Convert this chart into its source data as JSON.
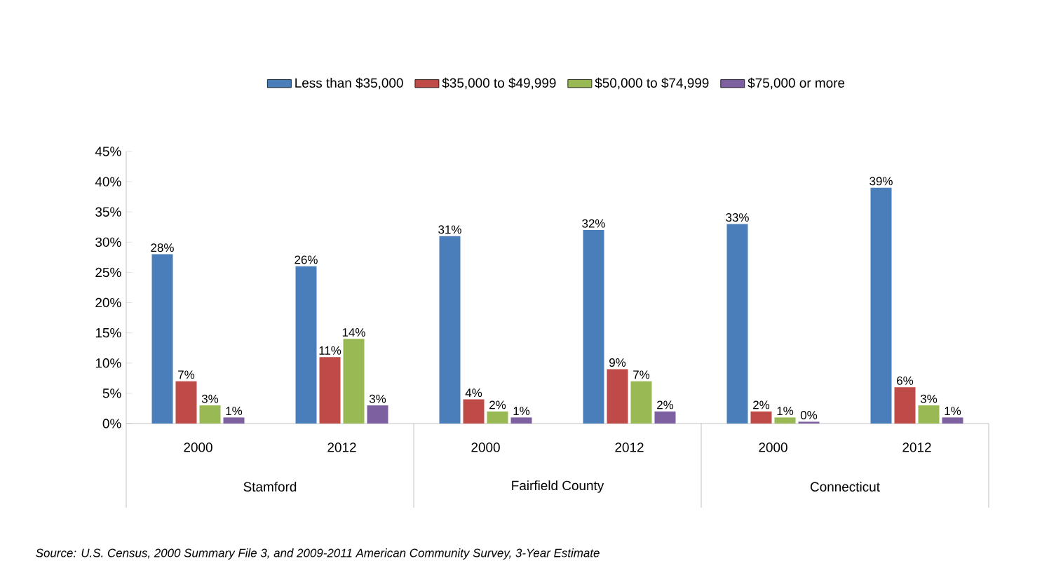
{
  "chart_data": {
    "type": "bar",
    "categories": [
      "2000",
      "2012",
      "2000",
      "2012",
      "2000",
      "2012"
    ],
    "series": [
      {
        "name": "Less than $35,000",
        "color": "#4a7ebb",
        "values": [
          28,
          26,
          31,
          32,
          33,
          39
        ],
        "value_labels": [
          "28%",
          "26%",
          "31%",
          "32%",
          "33%",
          "39%"
        ]
      },
      {
        "name": "$35,000 to $49,999",
        "color": "#be4b48",
        "values": [
          7,
          11,
          4,
          9,
          2,
          6
        ],
        "value_labels": [
          "7%",
          "11%",
          "4%",
          "9%",
          "2%",
          "6%"
        ]
      },
      {
        "name": "$50,000 to $74,999",
        "color": "#98b954",
        "values": [
          3,
          14,
          2,
          7,
          1,
          3
        ],
        "value_labels": [
          "3%",
          "14%",
          "2%",
          "7%",
          "1%",
          "3%"
        ]
      },
      {
        "name": "$75,000 or more",
        "color": "#7d60a0",
        "values": [
          1,
          3,
          1,
          2,
          0.3,
          1
        ],
        "value_labels": [
          "1%",
          "3%",
          "1%",
          "2%",
          "0%",
          "1%"
        ]
      }
    ],
    "ylim": [
      0,
      45
    ],
    "yticks": [
      {
        "value": 0,
        "label": "0%"
      },
      {
        "value": 5,
        "label": "5%"
      },
      {
        "value": 10,
        "label": "10%"
      },
      {
        "value": 15,
        "label": "15%"
      },
      {
        "value": 20,
        "label": "20%"
      },
      {
        "value": 25,
        "label": "25%"
      },
      {
        "value": 30,
        "label": "30%"
      },
      {
        "value": 35,
        "label": "35%"
      },
      {
        "value": 40,
        "label": "40%"
      },
      {
        "value": 45,
        "label": "45%"
      }
    ],
    "grid": false,
    "legend": "top",
    "annotations": [
      "Stamford",
      "Fairfield County",
      "Connecticut",
      "*Source: U.S. Census, 2000 Summary File 3, and 2009-2011 American Community Survey, 3-Year Estimate*"
    ]
  }
}
